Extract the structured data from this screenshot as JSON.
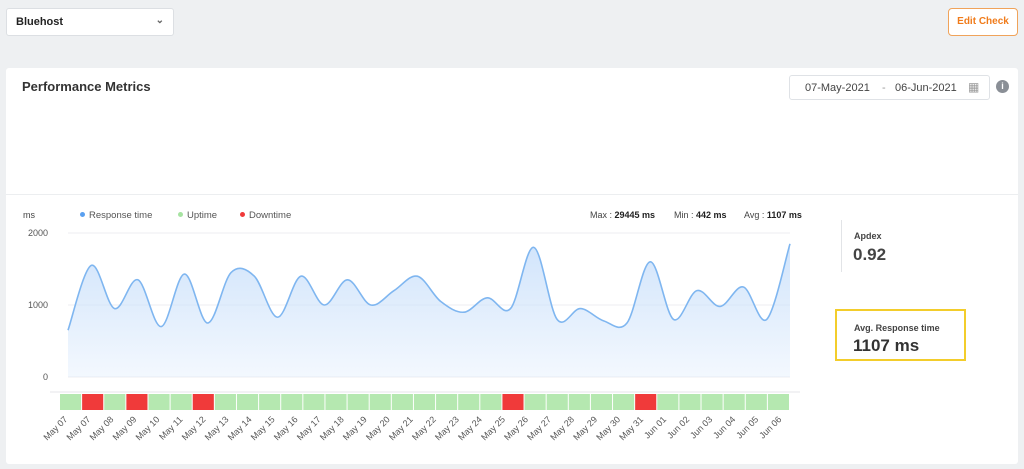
{
  "topbar": {
    "monitor_select": "Bluehost",
    "edit_check_label": "Edit Check"
  },
  "card": {
    "title": "Performance Metrics",
    "date_from": "07-May-2021",
    "date_separator": "-",
    "date_to": "06-Jun-2021"
  },
  "legend": {
    "unit": "ms",
    "items": [
      {
        "label": "Response time",
        "color": "#5aa0f0"
      },
      {
        "label": "Uptime",
        "color": "#a6e3a1"
      },
      {
        "label": "Downtime",
        "color": "#f03a3a"
      }
    ]
  },
  "stats": {
    "max_label": "Max :",
    "max_value": "29445 ms",
    "min_label": "Min :",
    "min_value": "442 ms",
    "avg_label": "Avg :",
    "avg_value": "1107 ms"
  },
  "side": {
    "apdex_label": "Apdex",
    "apdex_value": "0.92",
    "avg_response_label": "Avg. Response time",
    "avg_response_value": "1107 ms"
  },
  "colors": {
    "line": "#7fb6f0",
    "area_top": "#cfe3fb",
    "uptime": "#b5e8b0",
    "downtime": "#f03a3a"
  },
  "chart_data": {
    "type": "area",
    "yticks": [
      "2000",
      "1000",
      "0"
    ],
    "ylim": [
      0,
      2000
    ],
    "x": [
      "May 07",
      "May 07",
      "May 08",
      "May 09",
      "May 10",
      "May 11",
      "May 12",
      "May 13",
      "May 14",
      "May 15",
      "May 16",
      "May 17",
      "May 18",
      "May 19",
      "May 20",
      "May 21",
      "May 22",
      "May 23",
      "May 24",
      "May 25",
      "May 26",
      "May 27",
      "May 28",
      "May 29",
      "May 30",
      "May 31",
      "Jun 01",
      "Jun 02",
      "Jun 03",
      "Jun 04",
      "Jun 05",
      "Jun 06"
    ],
    "response_points": [
      650,
      1550,
      950,
      1350,
      700,
      1430,
      750,
      1450,
      1400,
      830,
      1400,
      1000,
      1350,
      1000,
      1200,
      1400,
      1050,
      900,
      1100,
      950,
      1800,
      800,
      950,
      780,
      750,
      1600,
      800,
      1200,
      980,
      1250,
      800,
      1850
    ],
    "status": [
      "up",
      "down",
      "up",
      "down",
      "up",
      "up",
      "down",
      "up",
      "up",
      "up",
      "up",
      "up",
      "up",
      "up",
      "up",
      "up",
      "up",
      "up",
      "up",
      "up",
      "down",
      "up",
      "up",
      "up",
      "up",
      "up",
      "down",
      "up",
      "up",
      "up",
      "up",
      "up",
      "up"
    ]
  }
}
